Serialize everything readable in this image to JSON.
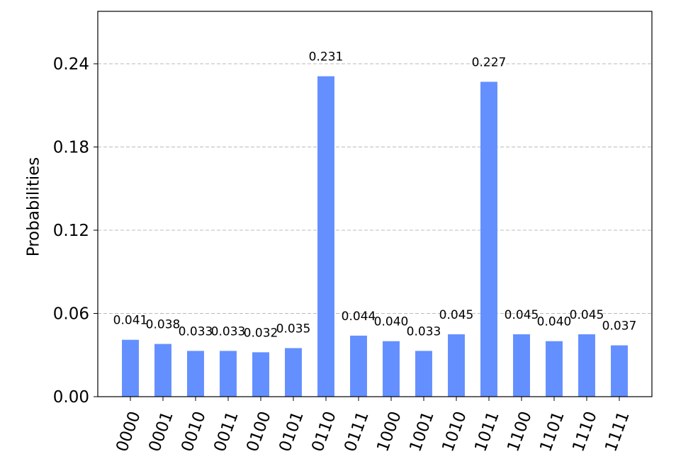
{
  "chart_data": {
    "type": "bar",
    "y_label": "Probabilities",
    "categories": [
      "0000",
      "0001",
      "0010",
      "0011",
      "0100",
      "0101",
      "0110",
      "0111",
      "1000",
      "1001",
      "1010",
      "1011",
      "1100",
      "1101",
      "1110",
      "1111"
    ],
    "values": [
      0.041,
      0.038,
      0.033,
      0.033,
      0.032,
      0.035,
      0.231,
      0.044,
      0.04,
      0.033,
      0.045,
      0.227,
      0.045,
      0.04,
      0.045,
      0.037
    ],
    "value_labels": [
      "0.041",
      "0.038",
      "0.033",
      "0.033",
      "0.032",
      "0.035",
      "0.231",
      "0.044",
      "0.040",
      "0.033",
      "0.045",
      "0.227",
      "0.045",
      "0.040",
      "0.045",
      "0.037"
    ],
    "color": "#648fff",
    "ylim": [
      0,
      0.2778
    ],
    "yticks": [
      {
        "value": 0,
        "label": "0.00"
      },
      0.06,
      0.12,
      0.18,
      0.24
    ],
    "grid": true
  }
}
